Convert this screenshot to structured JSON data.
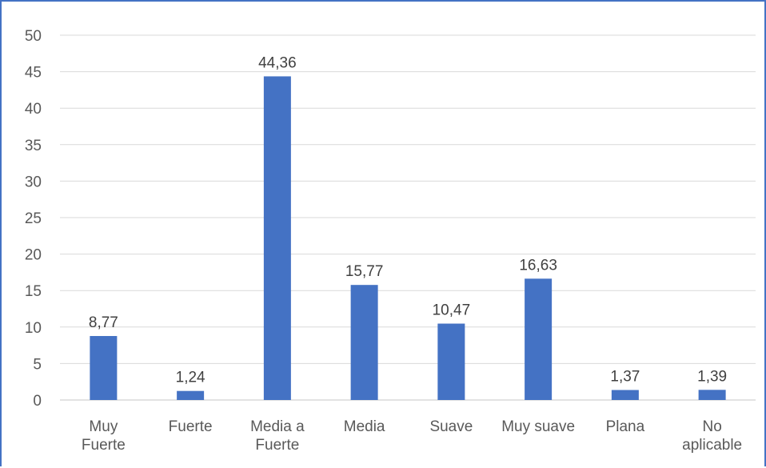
{
  "chart_data": {
    "type": "bar",
    "title": "",
    "xlabel": "",
    "ylabel": "",
    "categories": [
      [
        "Muy",
        "Fuerte"
      ],
      [
        "Fuerte"
      ],
      [
        "Media a",
        "Fuerte"
      ],
      [
        "Media"
      ],
      [
        "Suave"
      ],
      [
        "Muy suave"
      ],
      [
        "Plana"
      ],
      [
        "No",
        "aplicable"
      ]
    ],
    "values": [
      8.77,
      1.24,
      44.36,
      15.77,
      10.47,
      16.63,
      1.37,
      1.39
    ],
    "data_labels": [
      "8,77",
      "1,24",
      "44,36",
      "15,77",
      "10,47",
      "16,63",
      "1,37",
      "1,39"
    ],
    "ylim": [
      0,
      50
    ],
    "yticks": [
      0,
      5,
      10,
      15,
      20,
      25,
      30,
      35,
      40,
      45,
      50
    ],
    "grid": true,
    "legend": "none",
    "colors": {
      "bar": "#4472c4",
      "grid": "#d9d9d9",
      "frame": "#4472c4"
    }
  }
}
